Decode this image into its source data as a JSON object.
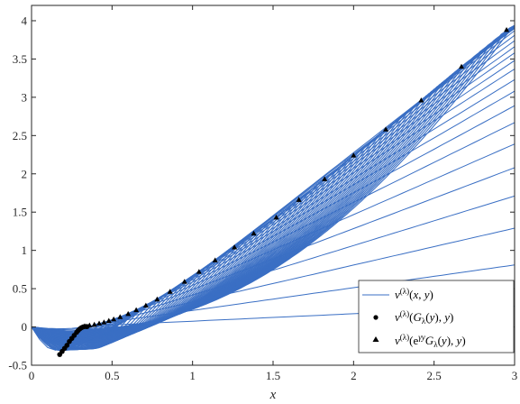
{
  "chart_data": {
    "type": "line",
    "title": "",
    "xlabel": "x",
    "ylabel": "",
    "xlim": [
      0,
      3
    ],
    "ylim": [
      -0.5,
      4.2
    ],
    "xticks": [
      "0",
      "0.5",
      "1",
      "1.5",
      "2",
      "2.5",
      "3"
    ],
    "yticks": [
      "-0.5",
      "0",
      "0.5",
      "1",
      "1.5",
      "2",
      "2.5",
      "3",
      "3.5",
      "4"
    ],
    "grid": false,
    "legend_position": "bottom-right",
    "colors": {
      "line": "#3a6fc4",
      "markers": "#000000"
    },
    "legend": [
      {
        "marker": "line",
        "label": "v^(λ)(x, y)"
      },
      {
        "marker": "circle",
        "label": "v^(λ)(G_λ(y), y)"
      },
      {
        "marker": "triangle",
        "label": "v^(λ)(e^γy G_λ(y), y)"
      }
    ],
    "series": [
      {
        "name": "v^(λ)(x, y)",
        "style": "line-family",
        "endpoints_at_x3": [
          0.27,
          0.81,
          1.29,
          1.71,
          2.08,
          2.39,
          2.67,
          2.89,
          3.08,
          3.23,
          3.37,
          3.48,
          3.58,
          3.66,
          3.74,
          3.81,
          3.87,
          3.92
        ]
      },
      {
        "name": "v^(λ)(G_λ(y), y)",
        "marker": "circle",
        "x": [
          0.175,
          0.19,
          0.205,
          0.22,
          0.235,
          0.25,
          0.265,
          0.28,
          0.29,
          0.3,
          0.31,
          0.32,
          0.33,
          0.34,
          0.345
        ],
        "y": [
          -0.36,
          -0.32,
          -0.28,
          -0.24,
          -0.19,
          -0.15,
          -0.11,
          -0.07,
          -0.045,
          -0.025,
          -0.01,
          0.0,
          0.005,
          0.005,
          0.005
        ]
      },
      {
        "name": "v^(λ)(e^γy G_λ(y), y)",
        "marker": "triangle",
        "x": [
          0.33,
          0.36,
          0.39,
          0.42,
          0.45,
          0.48,
          0.51,
          0.55,
          0.6,
          0.65,
          0.71,
          0.78,
          0.86,
          0.95,
          1.04,
          1.14,
          1.26,
          1.38,
          1.52,
          1.66,
          1.82,
          2.0,
          2.2,
          2.42,
          2.67,
          2.95
        ],
        "y": [
          0.01,
          0.02,
          0.03,
          0.045,
          0.06,
          0.08,
          0.1,
          0.13,
          0.17,
          0.22,
          0.28,
          0.36,
          0.46,
          0.59,
          0.72,
          0.87,
          1.04,
          1.22,
          1.43,
          1.66,
          1.93,
          2.24,
          2.58,
          2.96,
          3.4,
          3.88
        ]
      }
    ]
  }
}
